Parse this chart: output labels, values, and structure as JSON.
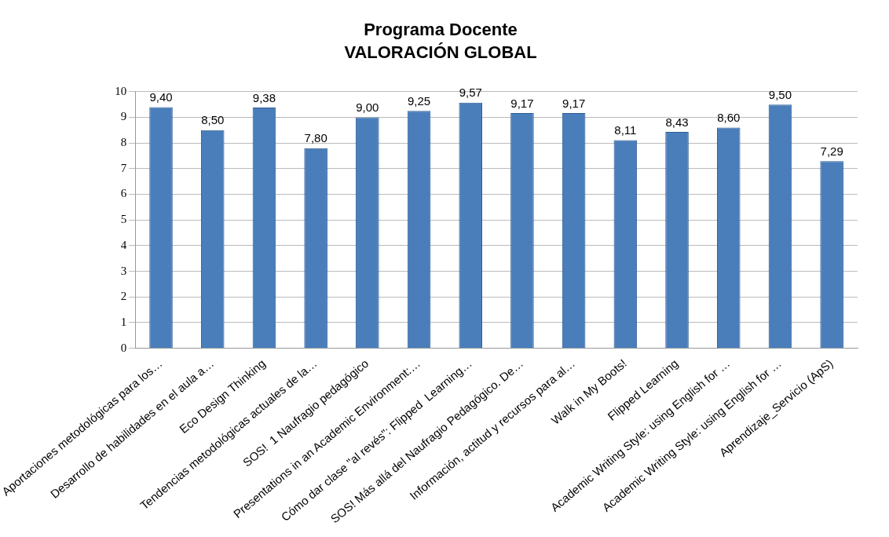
{
  "chart_data": {
    "type": "bar",
    "title": "Programa Docente",
    "subtitle": "VALORACIÓN GLOBAL",
    "categories": [
      "Aportaciones metodológicas para los…",
      "Desarrollo de habilidades en el aula a…",
      "Eco Design Thinking",
      "Tendencias metodológicas actuales de la…",
      "SOS!  1 Naufragio pedagógico",
      "Presentations in an Academic Environment:…",
      "Cómo dar clase \"al revés\": Flipped  Learning…",
      "SOS! Más allá del Naufragio Pedagógico. De…",
      "Información, actitud y recursos para al…",
      "Walk in My Boots!",
      "Flipped Learning",
      "Academic Writing Style: using English for …",
      "Academic Writing Style: using English for …",
      "Aprendizaje_Servicio (ApS)"
    ],
    "values": [
      9.4,
      8.5,
      9.38,
      7.8,
      9.0,
      9.25,
      9.57,
      9.17,
      9.17,
      8.11,
      8.43,
      8.6,
      9.5,
      7.29
    ],
    "value_labels": [
      "9,40",
      "8,50",
      "9,38",
      "7,80",
      "9,00",
      "9,25",
      "9,57",
      "9,17",
      "9,17",
      "8,11",
      "8,43",
      "8,60",
      "9,50",
      "7,29"
    ],
    "color": "#4a7ebb",
    "ylim": [
      0,
      10
    ],
    "yticks": [
      0,
      1,
      2,
      3,
      4,
      5,
      6,
      7,
      8,
      9,
      10
    ],
    "grid": "y",
    "legend": false
  }
}
